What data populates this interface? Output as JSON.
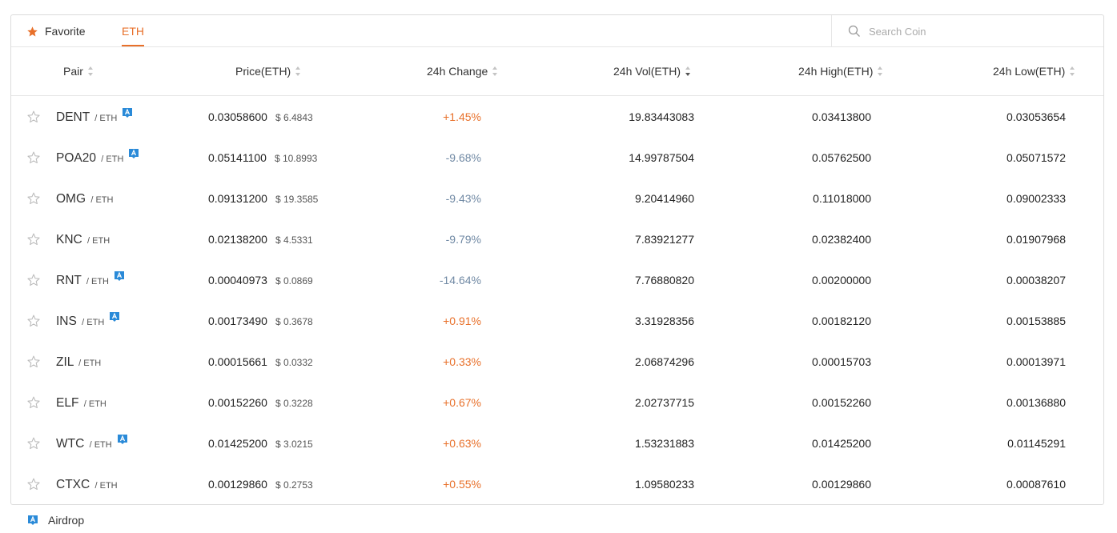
{
  "tabs": {
    "favorite_label": "Favorite",
    "eth_label": "ETH"
  },
  "search": {
    "placeholder": "Search Coin"
  },
  "columns": {
    "pair": "Pair",
    "price": "Price(ETH)",
    "change": "24h Change",
    "vol": "24h Vol(ETH)",
    "high": "24h High(ETH)",
    "low": "24h Low(ETH)"
  },
  "rows": [
    {
      "base": "DENT",
      "quote": "/ ETH",
      "airdrop": true,
      "price": "0.03058600",
      "usd": "$ 6.4843",
      "change": "+1.45%",
      "trend": "up",
      "vol": "19.83443083",
      "high": "0.03413800",
      "low": "0.03053654"
    },
    {
      "base": "POA20",
      "quote": "/ ETH",
      "airdrop": true,
      "price": "0.05141100",
      "usd": "$ 10.8993",
      "change": "-9.68%",
      "trend": "down",
      "vol": "14.99787504",
      "high": "0.05762500",
      "low": "0.05071572"
    },
    {
      "base": "OMG",
      "quote": "/ ETH",
      "airdrop": false,
      "price": "0.09131200",
      "usd": "$ 19.3585",
      "change": "-9.43%",
      "trend": "down",
      "vol": "9.20414960",
      "high": "0.11018000",
      "low": "0.09002333"
    },
    {
      "base": "KNC",
      "quote": "/ ETH",
      "airdrop": false,
      "price": "0.02138200",
      "usd": "$ 4.5331",
      "change": "-9.79%",
      "trend": "down",
      "vol": "7.83921277",
      "high": "0.02382400",
      "low": "0.01907968"
    },
    {
      "base": "RNT",
      "quote": "/ ETH",
      "airdrop": true,
      "price": "0.00040973",
      "usd": "$ 0.0869",
      "change": "-14.64%",
      "trend": "down",
      "vol": "7.76880820",
      "high": "0.00200000",
      "low": "0.00038207"
    },
    {
      "base": "INS",
      "quote": "/ ETH",
      "airdrop": true,
      "price": "0.00173490",
      "usd": "$ 0.3678",
      "change": "+0.91%",
      "trend": "up",
      "vol": "3.31928356",
      "high": "0.00182120",
      "low": "0.00153885"
    },
    {
      "base": "ZIL",
      "quote": "/ ETH",
      "airdrop": false,
      "price": "0.00015661",
      "usd": "$ 0.0332",
      "change": "+0.33%",
      "trend": "up",
      "vol": "2.06874296",
      "high": "0.00015703",
      "low": "0.00013971"
    },
    {
      "base": "ELF",
      "quote": "/ ETH",
      "airdrop": false,
      "price": "0.00152260",
      "usd": "$ 0.3228",
      "change": "+0.67%",
      "trend": "up",
      "vol": "2.02737715",
      "high": "0.00152260",
      "low": "0.00136880"
    },
    {
      "base": "WTC",
      "quote": "/ ETH",
      "airdrop": true,
      "price": "0.01425200",
      "usd": "$ 3.0215",
      "change": "+0.63%",
      "trend": "up",
      "vol": "1.53231883",
      "high": "0.01425200",
      "low": "0.01145291"
    },
    {
      "base": "CTXC",
      "quote": "/ ETH",
      "airdrop": false,
      "price": "0.00129860",
      "usd": "$ 0.2753",
      "change": "+0.55%",
      "trend": "up",
      "vol": "1.09580233",
      "high": "0.00129860",
      "low": "0.00087610"
    }
  ],
  "legend": {
    "airdrop_label": "Airdrop"
  },
  "colors": {
    "accent": "#e8702a",
    "positive": "#e8702a",
    "negative": "#7089a4",
    "airdrop_badge": "#2a8ad8"
  },
  "icons": {
    "favorite_tab": "star-filled-icon",
    "row_favorite": "star-outline-icon",
    "search": "search-icon",
    "airdrop": "airdrop-badge-icon",
    "sort": "sort-arrows-icon"
  }
}
